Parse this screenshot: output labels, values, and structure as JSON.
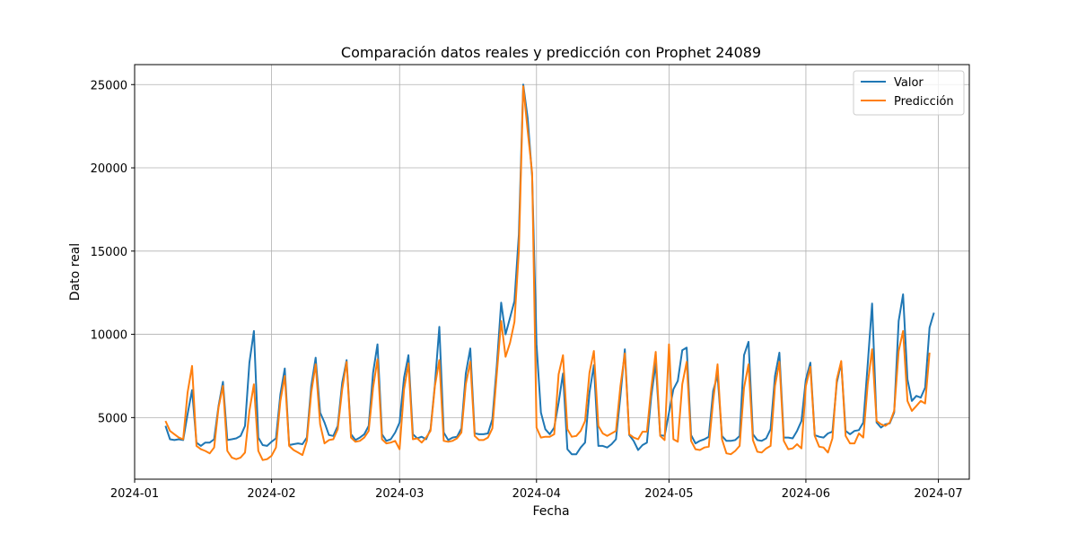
{
  "chart_data": {
    "type": "line",
    "title": "Comparación datos reales y predicción con Prophet 24089",
    "xlabel": "Fecha",
    "ylabel": "Dato real",
    "xlim": [
      "2024-01-01",
      "2024-07-08"
    ],
    "ylim": [
      1300,
      26200
    ],
    "grid": true,
    "legend_position": "top-right",
    "x_tick_labels": [
      "2024-01",
      "2024-02",
      "2024-03",
      "2024-04",
      "2024-05",
      "2024-06",
      "2024-07"
    ],
    "x_tick_values": [
      "2024-01-01",
      "2024-02-01",
      "2024-03-01",
      "2024-04-01",
      "2024-05-01",
      "2024-06-01",
      "2024-07-01"
    ],
    "y_ticks": [
      5000,
      10000,
      15000,
      20000,
      25000
    ],
    "start_date": "2024-01-08",
    "series": [
      {
        "name": "Valor",
        "color": "#1f77b4",
        "values": [
          4500,
          3700,
          3650,
          3700,
          3650,
          5200,
          6650,
          3500,
          3300,
          3500,
          3500,
          3700,
          5700,
          7150,
          3650,
          3700,
          3750,
          3900,
          4500,
          8300,
          10200,
          3800,
          3350,
          3300,
          3550,
          3750,
          6400,
          7950,
          3350,
          3400,
          3450,
          3400,
          3800,
          6900,
          8600,
          5300,
          4700,
          3950,
          3900,
          4500,
          7100,
          8450,
          4000,
          3650,
          3800,
          4000,
          4500,
          7700,
          9400,
          4000,
          3600,
          3700,
          4100,
          4700,
          7400,
          8750,
          4000,
          3750,
          3850,
          3700,
          4300,
          7000,
          10450,
          4100,
          3650,
          3800,
          3850,
          4350,
          7650,
          9150,
          4050,
          4000,
          4000,
          4050,
          4900,
          8100,
          11900,
          10000,
          11000,
          12000,
          16000,
          25000,
          23000,
          19500,
          9400,
          5300,
          4300,
          4000,
          4400,
          5900,
          7650,
          3100,
          2800,
          2800,
          3200,
          3500,
          6500,
          8150,
          3300,
          3300,
          3200,
          3400,
          3700,
          6300,
          9100,
          3950,
          3600,
          3050,
          3350,
          3500,
          6300,
          8250,
          3950,
          3900,
          5300,
          6700,
          7200,
          9050,
          9200,
          3950,
          3450,
          3600,
          3700,
          3850,
          6600,
          7550,
          3900,
          3600,
          3600,
          3650,
          3900,
          8750,
          9550,
          4000,
          3650,
          3600,
          3750,
          4300,
          7500,
          8900,
          3800,
          3800,
          3750,
          4200,
          4800,
          7300,
          8300,
          3950,
          3850,
          3800,
          4050,
          4150,
          7100,
          8300,
          4200,
          4000,
          4200,
          4250,
          4700,
          8200,
          11850,
          4700,
          4400,
          4600,
          4650,
          5300,
          10800,
          12400,
          7300,
          6000,
          6300,
          6200,
          6800,
          10400,
          11300
        ]
      },
      {
        "name": "Predicción",
        "color": "#ff7f0e",
        "values": [
          4800,
          4200,
          4000,
          3800,
          3700,
          6500,
          8100,
          3300,
          3100,
          3000,
          2850,
          3200,
          5600,
          6900,
          3000,
          2600,
          2500,
          2600,
          2900,
          5400,
          7000,
          3000,
          2450,
          2500,
          2700,
          3200,
          6000,
          7500,
          3300,
          3050,
          2900,
          2750,
          3600,
          6500,
          8200,
          4600,
          3450,
          3650,
          3700,
          4300,
          6700,
          8350,
          3800,
          3550,
          3600,
          3800,
          4200,
          6800,
          8500,
          3700,
          3450,
          3500,
          3600,
          3100,
          6700,
          8250,
          3700,
          3750,
          3500,
          3800,
          4200,
          6900,
          8450,
          3600,
          3550,
          3600,
          3750,
          4100,
          7000,
          8350,
          3900,
          3650,
          3650,
          3800,
          4350,
          7600,
          10800,
          8650,
          9500,
          10750,
          15000,
          24900,
          22250,
          19700,
          4400,
          3800,
          3850,
          3850,
          4000,
          7600,
          8750,
          4300,
          3850,
          3900,
          4200,
          4800,
          7700,
          9000,
          4500,
          4050,
          3900,
          4050,
          4200,
          6900,
          8850,
          4000,
          3800,
          3700,
          4150,
          4150,
          6800,
          8950,
          3900,
          3650,
          9400,
          3700,
          3550,
          7000,
          8350,
          3600,
          3100,
          3050,
          3200,
          3250,
          6000,
          8200,
          3700,
          2850,
          2800,
          3000,
          3300,
          6800,
          8200,
          3650,
          2950,
          2900,
          3150,
          3300,
          6900,
          8350,
          3600,
          3100,
          3150,
          3400,
          3150,
          6900,
          8050,
          3900,
          3250,
          3200,
          2900,
          3750,
          7300,
          8400,
          3900,
          3450,
          3450,
          4050,
          3800,
          7000,
          9100,
          4800,
          4600,
          4500,
          4700,
          5400,
          9000,
          10200,
          6000,
          5400,
          5700,
          6000,
          5850,
          8900
        ]
      }
    ]
  }
}
